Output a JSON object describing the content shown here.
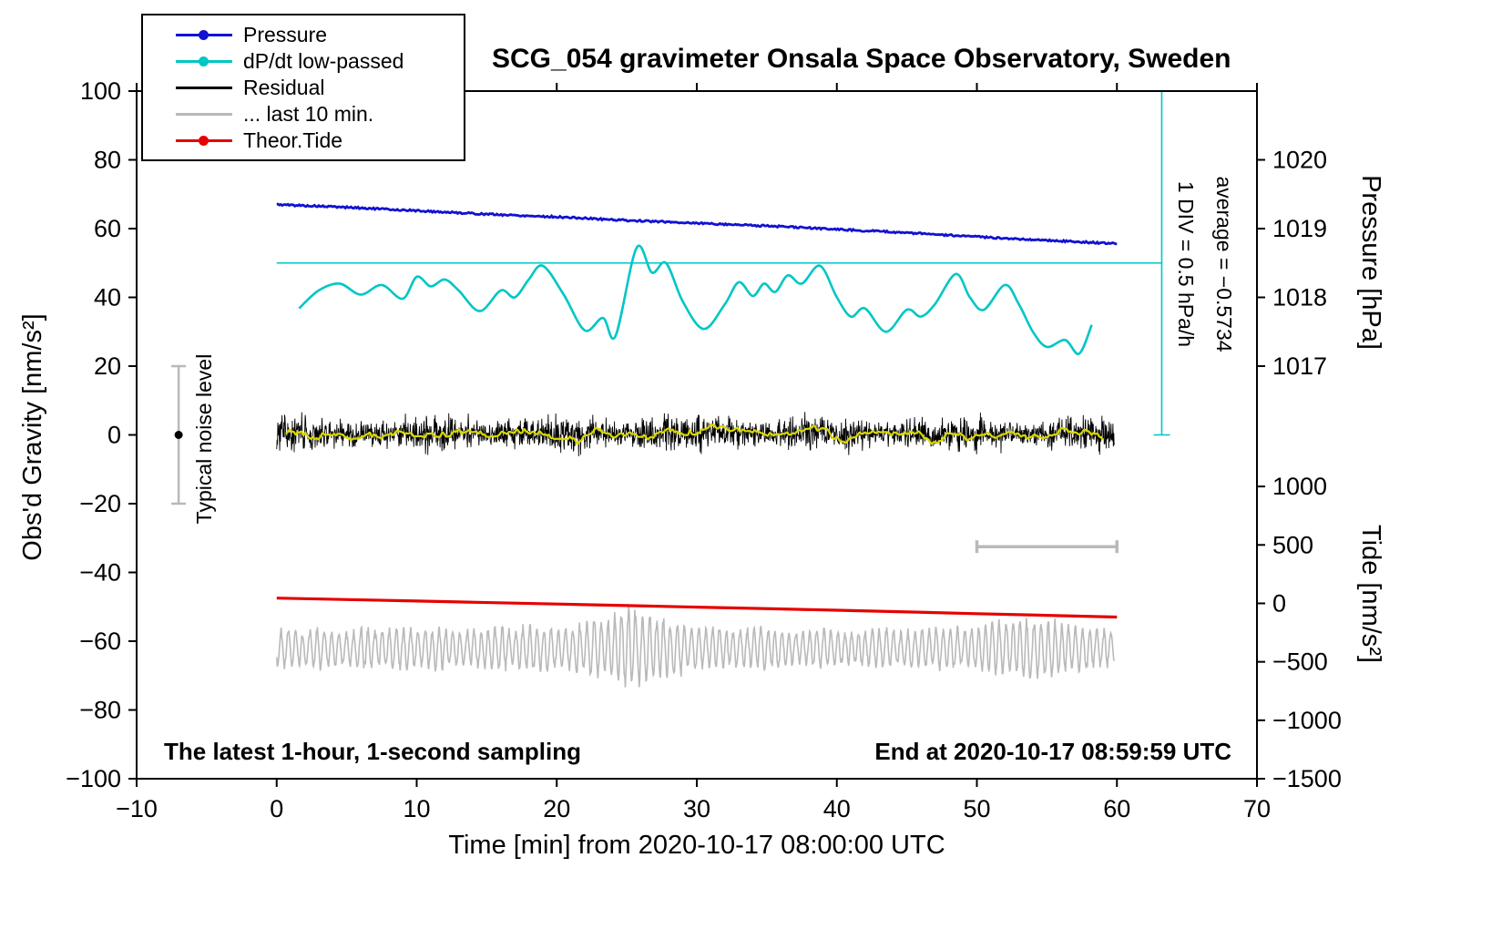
{
  "legend": {
    "items": [
      {
        "label": "Pressure",
        "color": "#1212d2",
        "dot": true
      },
      {
        "label": "dP/dt low-passed",
        "color": "#00c6c6",
        "dot": true
      },
      {
        "label": "Residual",
        "color": "#000000",
        "dot": false
      },
      {
        "label": "... last 10 min.",
        "color": "#b9b9b9",
        "dot": false
      },
      {
        "label": "Theor.Tide",
        "color": "#e60000",
        "dot": true
      }
    ]
  },
  "footers": {
    "left": "The latest 1-hour, 1-second sampling",
    "right": "End at 2020-10-17 08:59:59 UTC"
  },
  "axes": {
    "x": {
      "ticks": [
        -10,
        0,
        10,
        20,
        30,
        40,
        50,
        60,
        70
      ],
      "labels": [
        "−10",
        "0",
        "10",
        "20",
        "30",
        "40",
        "50",
        "60",
        "70"
      ]
    },
    "y_left": {
      "ticks": [
        100,
        80,
        60,
        40,
        20,
        0,
        -20,
        -40,
        -60,
        -80,
        -100
      ],
      "labels": [
        "100",
        "80",
        "60",
        "40",
        "20",
        "0",
        "−20",
        "−40",
        "−60",
        "−80",
        "−100"
      ]
    },
    "pressure": {
      "ticks": [
        1020,
        1019,
        1018,
        1017
      ],
      "labels": [
        "1020",
        "1019",
        "1018",
        "1017"
      ]
    },
    "tide": {
      "ticks": [
        1000,
        500,
        0,
        -500,
        -1000,
        -1500
      ],
      "labels": [
        "1000",
        "500",
        "0",
        "−500",
        "−1000",
        "−1500"
      ]
    }
  },
  "chart_data": {
    "type": "line",
    "title": "SCG_054 gravimeter Onsala Space Observatory, Sweden",
    "xlabel": "Time [min] from 2020-10-17 08:00:00 UTC",
    "ylabel_left": "Obs'd Gravity [nm/s²]",
    "ylabel_right_pressure": "Pressure [hPa]",
    "ylabel_right_tide": "Tide [nm/s²]",
    "x_range": [
      -10,
      70
    ],
    "gravity_range": [
      -100,
      100
    ],
    "pressure_mapping_note": "1 hPa on pressure axis = 20 nm/s² on gravity axis, 1017 hPa at +20",
    "tide_mapping_note": "tide -1500 nm/s² at gravity -100, +500 tide per 17 gravity units",
    "series": [
      {
        "name": "Pressure",
        "unit": "hPa",
        "color": "#1212d2",
        "x": [
          0,
          5,
          10,
          15,
          20,
          25,
          30,
          35,
          40,
          45,
          50,
          55,
          60
        ],
        "values": [
          1019.35,
          1019.31,
          1019.26,
          1019.21,
          1019.17,
          1019.12,
          1019.08,
          1019.04,
          1018.99,
          1018.94,
          1018.88,
          1018.83,
          1018.78
        ]
      },
      {
        "name": "dP/dt low-passed",
        "unit": "hPa/h",
        "color": "#00c6c6",
        "zero_at_gravity": 50,
        "scale": "1 DIV = 0.5 hPa/h",
        "x": [
          1.6,
          3,
          4.5,
          6,
          7.5,
          9,
          10,
          11,
          12,
          13,
          14.5,
          16,
          17,
          18,
          19,
          20.5,
          22,
          23.3,
          24.2,
          25.7,
          26.8,
          27.8,
          29,
          30.5,
          32,
          33,
          34,
          34.8,
          35.6,
          36.5,
          37.5,
          38.8,
          40,
          41,
          42,
          43.5,
          45,
          46,
          47,
          48.5,
          49.5,
          50.5,
          52,
          53,
          54,
          55,
          56.3,
          57.3,
          58.2
        ],
        "values": [
          -0.33,
          -0.2,
          -0.15,
          -0.23,
          -0.16,
          -0.26,
          -0.1,
          -0.17,
          -0.12,
          -0.2,
          -0.35,
          -0.2,
          -0.25,
          -0.12,
          -0.02,
          -0.23,
          -0.49,
          -0.4,
          -0.53,
          0.11,
          -0.07,
          0.0,
          -0.28,
          -0.48,
          -0.3,
          -0.14,
          -0.24,
          -0.15,
          -0.21,
          -0.09,
          -0.15,
          -0.02,
          -0.25,
          -0.39,
          -0.33,
          -0.5,
          -0.34,
          -0.39,
          -0.3,
          -0.08,
          -0.25,
          -0.34,
          -0.16,
          -0.3,
          -0.5,
          -0.61,
          -0.56,
          -0.66,
          -0.45
        ]
      },
      {
        "name": "Residual",
        "unit": "nm/s²",
        "color": "#000000",
        "representation": "noise",
        "mean": 0.4,
        "sigma": 2.2,
        "n": 2200,
        "x_range": [
          0,
          59.8
        ]
      },
      {
        "name": "Residual smoothed",
        "unit": "nm/s²",
        "color": "#d6d600",
        "derived": "moving average of Residual",
        "window_points": 50
      },
      {
        "name": "... last 10 min.",
        "unit": "nm/s²",
        "color": "#b9b9b9",
        "representation": "oscillation",
        "center": -62,
        "x_range": [
          0,
          59.8
        ],
        "amplitude_envelope_per_min": [
          5,
          5.5,
          4.5,
          6,
          5,
          4.5,
          6.5,
          5,
          5.5,
          6,
          5,
          6,
          5.5,
          4.5,
          5,
          5.5,
          6,
          5,
          6.5,
          6,
          5.5,
          6,
          7,
          8,
          9.5,
          11,
          10,
          9,
          8,
          7,
          6,
          5.5,
          6,
          5,
          5.5,
          6,
          5,
          4.5,
          5,
          5.5,
          5,
          4.5,
          5,
          5.5,
          5,
          4.5,
          5,
          5.5,
          6,
          5,
          6,
          7,
          8,
          7.5,
          8.5,
          8,
          7,
          6,
          5.5,
          5,
          4.5
        ]
      },
      {
        "name": "Theor.Tide",
        "unit": "nm/s² (tide axis)",
        "color": "#e60000",
        "x": [
          0,
          10,
          20,
          30,
          40,
          50,
          60
        ],
        "values": [
          45,
          20,
          -6,
          -32,
          -59,
          -88,
          -117
        ]
      }
    ],
    "annotations": {
      "dpdt_zero_line": {
        "gravity": 50,
        "x_from": 0,
        "x_to": 63.2
      },
      "dpdt_ruler": {
        "x": 63.2,
        "gravity_from": 0,
        "gravity_to": 100
      },
      "noise_bar": {
        "x": -7,
        "gravity_from": -20,
        "gravity_to": 20,
        "dot_gravity": 0
      },
      "last10_bar": {
        "gravity": -32.5,
        "x_from": 50,
        "x_to": 60
      },
      "noise_label": "Typical noise level",
      "div_label": "1 DIV = 0.5 hPa/h",
      "avg_label": "average = −0.5734"
    }
  }
}
